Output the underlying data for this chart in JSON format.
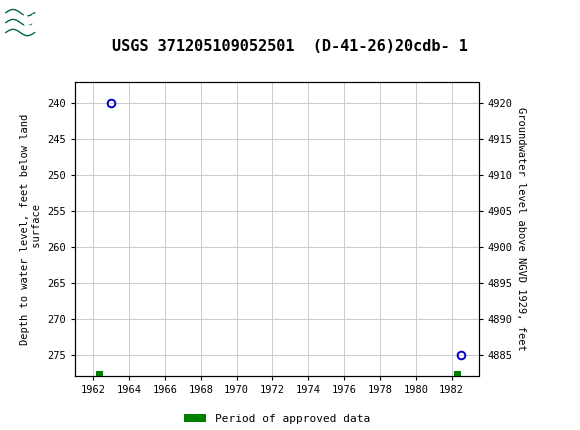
{
  "title": "USGS 371205109052501  (D-41-26)20cdb- 1",
  "title_fontsize": 11,
  "header_color": "#006644",
  "bg_color": "#ffffff",
  "plot_bg_color": "#ffffff",
  "grid_color": "#cccccc",
  "left_ylabel": "Depth to water level, feet below land\n surface",
  "right_ylabel": "Groundwater level above NGVD 1929, feet",
  "xlim": [
    1961.0,
    1983.5
  ],
  "xticks": [
    1962,
    1964,
    1966,
    1968,
    1970,
    1972,
    1974,
    1976,
    1978,
    1980,
    1982
  ],
  "ylim_left_top": 237.0,
  "ylim_left_bottom": 278.0,
  "yticks_left": [
    240,
    245,
    250,
    255,
    260,
    265,
    270,
    275
  ],
  "yticks_right": [
    4920,
    4915,
    4910,
    4905,
    4900,
    4895,
    4890,
    4885
  ],
  "ylim_right_top": 4923.0,
  "ylim_right_bottom": 4882.0,
  "data_points": [
    {
      "x": 1963.0,
      "y_depth": 240.0
    },
    {
      "x": 1982.5,
      "y_depth": 275.0
    }
  ],
  "approved_segments": [
    {
      "x_start": 1962.15,
      "x_end": 1962.55
    },
    {
      "x_start": 1982.15,
      "x_end": 1982.55
    }
  ],
  "legend_label": "Period of approved data",
  "legend_color": "#008000",
  "point_color": "#0000cc",
  "font_family": "monospace"
}
